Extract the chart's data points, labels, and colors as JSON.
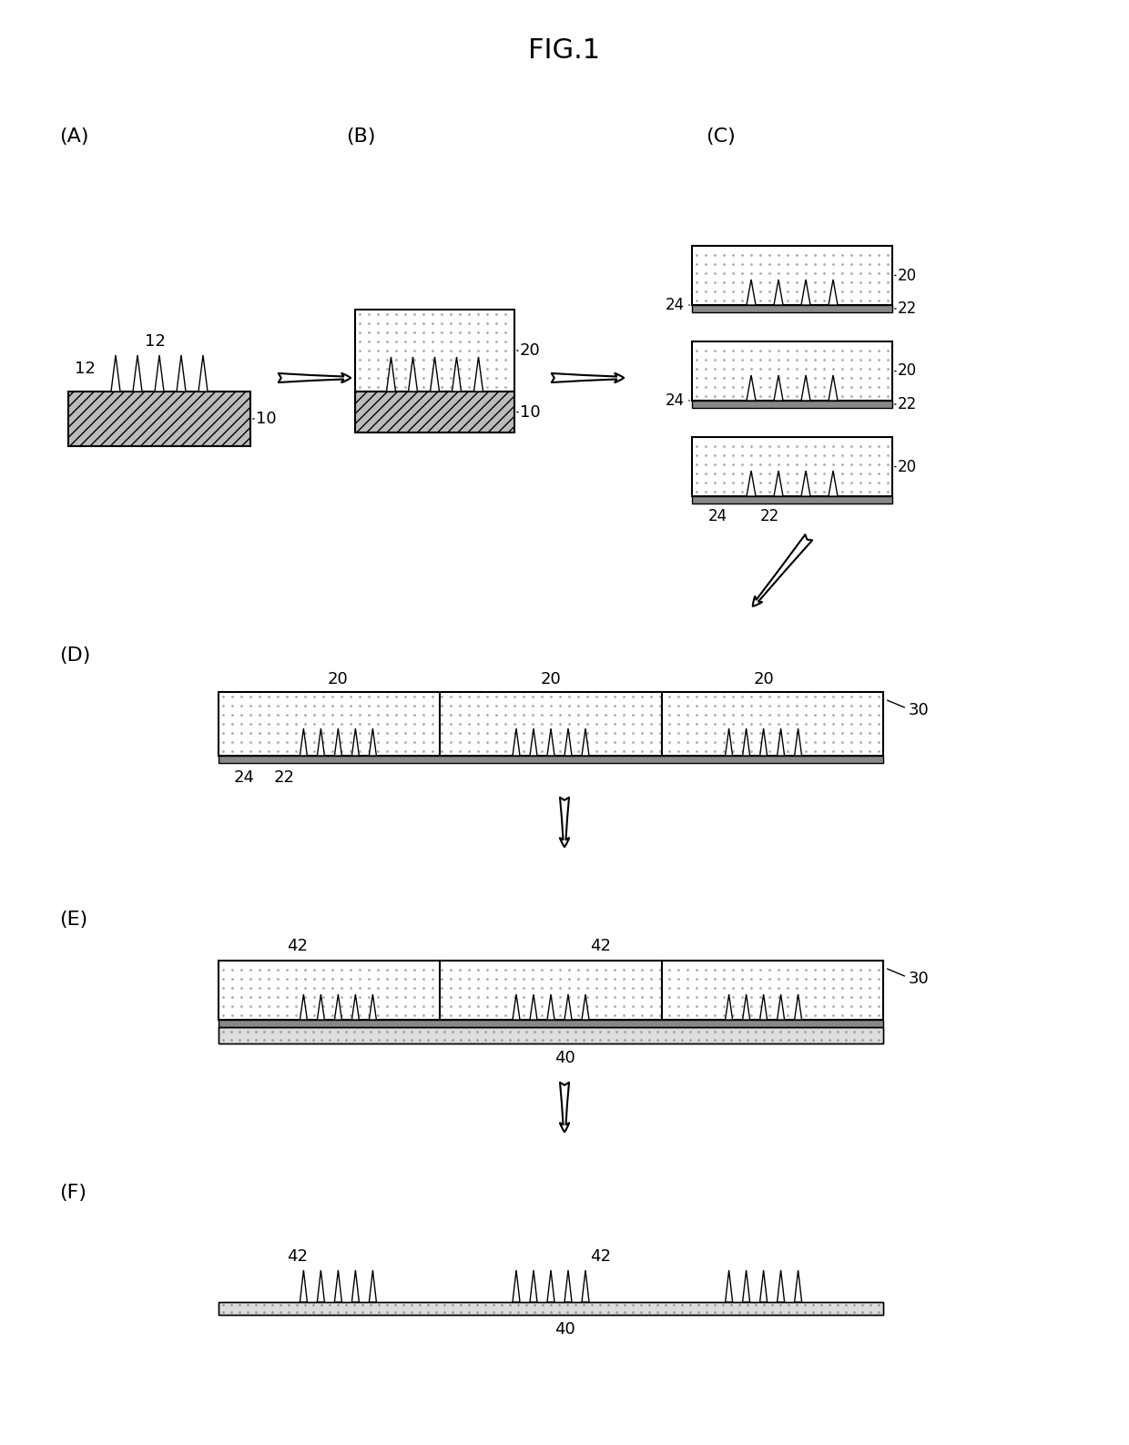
{
  "title": "FIG.1",
  "bg": "#ffffff",
  "dot_color": "#aaaaaa",
  "base_hatch_color": "#bbbbbb",
  "thin_film_color": "#888888",
  "resin_color": "#cccccc",
  "panel_labels": [
    "(A)",
    "(B)",
    "(C)",
    "(D)",
    "(E)",
    "(F)"
  ],
  "spike_color": "#000000",
  "border_color": "#000000"
}
